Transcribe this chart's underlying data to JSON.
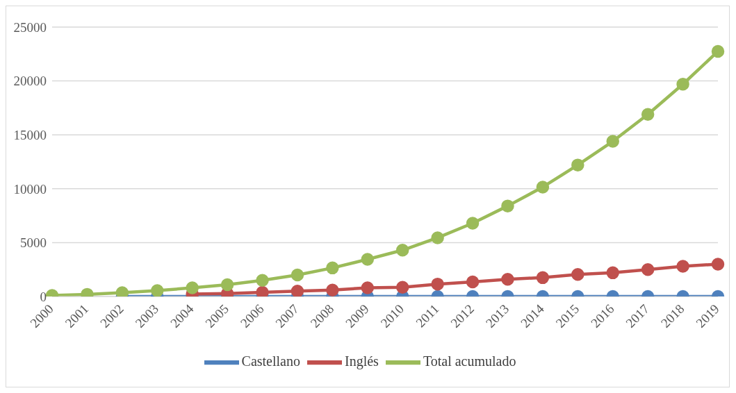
{
  "chart_data": {
    "type": "line",
    "categories": [
      "2000",
      "2001",
      "2002",
      "2003",
      "2004",
      "2005",
      "2006",
      "2007",
      "2008",
      "2009",
      "2010",
      "2011",
      "2012",
      "2013",
      "2014",
      "2015",
      "2016",
      "2017",
      "2018",
      "2019"
    ],
    "series": [
      {
        "name": "Castellano",
        "color": "#4f81bd",
        "values": [
          null,
          null,
          0,
          0,
          0,
          0,
          0,
          0,
          0,
          0,
          0,
          0,
          0,
          0,
          0,
          0,
          0,
          0,
          0,
          0
        ]
      },
      {
        "name": "Inglés",
        "color": "#c0504d",
        "values": [
          null,
          null,
          null,
          null,
          220,
          270,
          380,
          500,
          600,
          800,
          850,
          1150,
          1350,
          1600,
          1750,
          2050,
          2200,
          2500,
          2800,
          3000
        ]
      },
      {
        "name": "Total acumulado",
        "color": "#9bbb59",
        "values": [
          100,
          200,
          350,
          550,
          800,
          1100,
          1500,
          2000,
          2650,
          3450,
          4300,
          5450,
          6800,
          8400,
          10150,
          12200,
          14400,
          16900,
          19700,
          22750
        ]
      }
    ],
    "ylim": [
      0,
      25000
    ],
    "yticks": [
      0,
      5000,
      10000,
      15000,
      20000,
      25000
    ],
    "grid": "y",
    "legend": "bottom",
    "marker": "circle",
    "line_style": "solid"
  }
}
